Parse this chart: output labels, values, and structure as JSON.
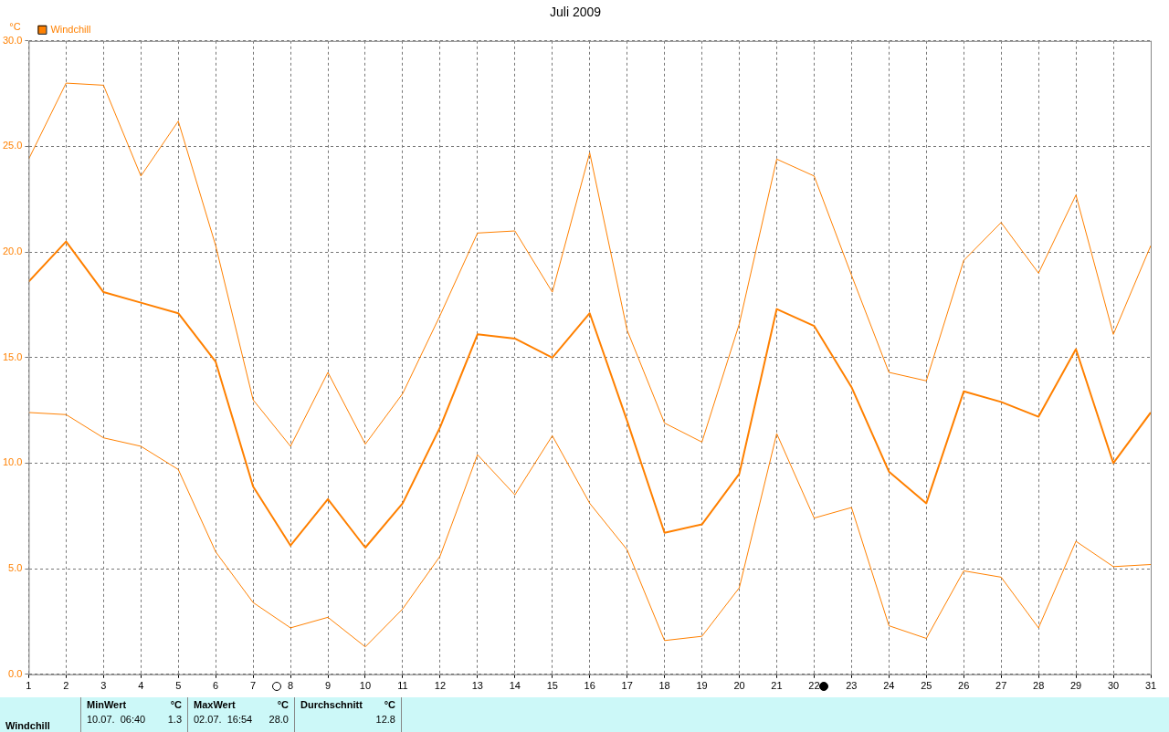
{
  "chart_data": {
    "type": "line",
    "title": "Juli 2009",
    "ylabel": "°C",
    "x": [
      1,
      2,
      3,
      4,
      5,
      6,
      7,
      8,
      9,
      10,
      11,
      12,
      13,
      14,
      15,
      16,
      17,
      18,
      19,
      20,
      21,
      22,
      23,
      24,
      25,
      26,
      27,
      28,
      29,
      30,
      31
    ],
    "series": [
      {
        "color": "#ff8000",
        "values": [
          24.4,
          28.0,
          27.9,
          23.6,
          26.2,
          20.3,
          13.0,
          10.8,
          14.3,
          10.9,
          13.3,
          17.0,
          20.9,
          21.0,
          18.1,
          24.7,
          16.3,
          11.9,
          11.0,
          16.6,
          24.4,
          23.6,
          18.9,
          14.3,
          13.9,
          19.6,
          21.4,
          19.0,
          22.7,
          16.1,
          20.3
        ]
      },
      {
        "name": "Windchill",
        "color": "#ff8000",
        "values": [
          18.6,
          20.5,
          18.1,
          17.6,
          17.1,
          14.8,
          8.9,
          6.1,
          8.3,
          6.0,
          8.1,
          11.7,
          16.1,
          15.9,
          15.0,
          17.1,
          12.0,
          6.7,
          7.1,
          9.5,
          17.3,
          16.5,
          13.6,
          9.6,
          8.1,
          13.4,
          12.9,
          12.2,
          15.4,
          10.0,
          12.4
        ]
      },
      {
        "color": "#ff8000",
        "values": [
          12.4,
          12.3,
          11.2,
          10.8,
          9.7,
          5.8,
          3.4,
          2.2,
          2.7,
          1.3,
          3.1,
          5.6,
          10.4,
          8.5,
          11.3,
          8.1,
          5.9,
          1.6,
          1.8,
          4.1,
          11.4,
          7.4,
          7.9,
          2.3,
          1.7,
          4.9,
          4.6,
          2.2,
          6.3,
          5.1,
          5.2
        ]
      }
    ],
    "xlim": [
      1,
      31
    ],
    "xticks": [
      1,
      2,
      3,
      4,
      5,
      6,
      7,
      8,
      9,
      10,
      11,
      12,
      13,
      14,
      15,
      16,
      17,
      18,
      19,
      20,
      21,
      22,
      23,
      24,
      25,
      26,
      27,
      28,
      29,
      30,
      31
    ],
    "ylim": [
      0,
      30
    ],
    "yticks": [
      {
        "value": 0,
        "label": "0.0"
      },
      {
        "value": 5,
        "label": "5.0"
      },
      {
        "value": 10,
        "label": "10.0"
      },
      {
        "value": 15,
        "label": "15.0"
      },
      {
        "value": 20,
        "label": "20.0"
      },
      {
        "value": 25,
        "label": "25.0"
      },
      {
        "value": 30,
        "label": "30.0"
      }
    ],
    "grid": true,
    "legend": "top left",
    "marker": "none",
    "line_style": "solid",
    "annotations": [
      "Windchill",
      "MinWert",
      "°C",
      "10.07.  06:40",
      "1.3",
      "MaxWert",
      "°C",
      "02.07.  16:54",
      "28.0",
      "Durchschnitt",
      "°C",
      "12.8"
    ]
  }
}
